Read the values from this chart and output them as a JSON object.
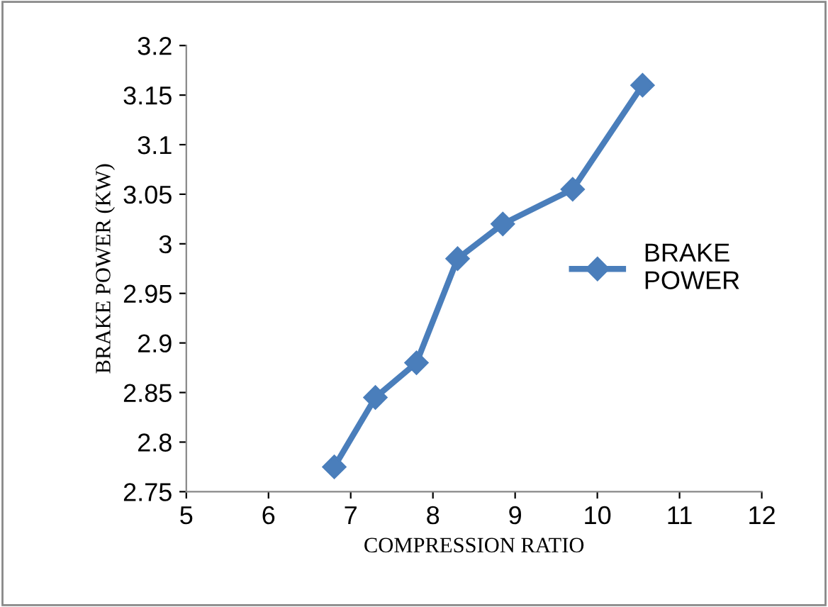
{
  "chart_data": {
    "type": "line",
    "xlabel": "COMPRESSION RATIO",
    "ylabel": "BRAKE POWER (KW)",
    "x": [
      6.8,
      7.3,
      7.8,
      8.3,
      8.85,
      9.7,
      10.55
    ],
    "series": [
      {
        "name": "BRAKE\nPOWER",
        "color": "#4a7ebb",
        "values": [
          2.775,
          2.845,
          2.88,
          2.985,
          3.02,
          3.055,
          3.16
        ]
      }
    ],
    "xlim": [
      5,
      12
    ],
    "xticks": [
      5,
      6,
      7,
      8,
      9,
      10,
      11,
      12
    ],
    "ylim": [
      2.75,
      3.2
    ],
    "yticks": [
      {
        "value": 2.75,
        "label": "2.75"
      },
      {
        "value": 2.8,
        "label": "2.8"
      },
      {
        "value": 2.85,
        "label": "2.85"
      },
      {
        "value": 2.9,
        "label": "2.9"
      },
      {
        "value": 2.95,
        "label": "2.95"
      },
      {
        "value": 3.0,
        "label": "3"
      },
      {
        "value": 3.05,
        "label": "3.05"
      },
      {
        "value": 3.1,
        "label": "3.1"
      },
      {
        "value": 3.15,
        "label": "3.15"
      },
      {
        "value": 3.2,
        "label": "3.2"
      }
    ],
    "marker": "diamond",
    "line_style": "solid",
    "grid": false,
    "legend": "right"
  }
}
